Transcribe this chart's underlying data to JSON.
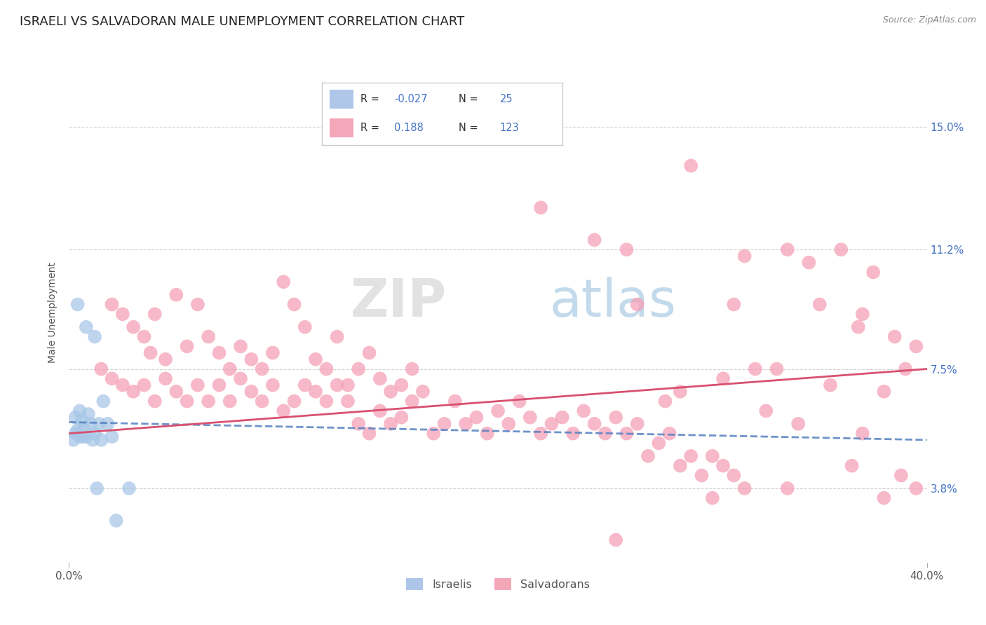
{
  "title": "ISRAELI VS SALVADORAN MALE UNEMPLOYMENT CORRELATION CHART",
  "source": "Source: ZipAtlas.com",
  "ylabel": "Male Unemployment",
  "ytick_labels": [
    "3.8%",
    "7.5%",
    "11.2%",
    "15.0%"
  ],
  "ytick_values": [
    3.8,
    7.5,
    11.2,
    15.0
  ],
  "xlim": [
    0.0,
    40.0
  ],
  "ylim": [
    1.5,
    17.0
  ],
  "watermark": "ZIPatlas",
  "israeli_color": "#a8c8e8",
  "salvadoran_color": "#f5a0b8",
  "trend_israeli_color": "#5580c0",
  "trend_salvadoran_color": "#d85070",
  "israeli_points": [
    [
      0.4,
      9.5
    ],
    [
      0.8,
      8.8
    ],
    [
      1.2,
      8.5
    ],
    [
      1.6,
      6.5
    ],
    [
      0.3,
      6.0
    ],
    [
      0.5,
      6.2
    ],
    [
      0.9,
      6.1
    ],
    [
      0.6,
      5.9
    ],
    [
      1.0,
      5.8
    ],
    [
      1.4,
      5.8
    ],
    [
      0.7,
      5.7
    ],
    [
      1.8,
      5.8
    ],
    [
      0.4,
      5.6
    ],
    [
      1.2,
      5.5
    ],
    [
      0.8,
      5.4
    ],
    [
      0.3,
      5.5
    ],
    [
      0.6,
      5.4
    ],
    [
      1.1,
      5.3
    ],
    [
      0.5,
      5.4
    ],
    [
      1.5,
      5.3
    ],
    [
      2.0,
      5.4
    ],
    [
      0.2,
      5.3
    ],
    [
      1.3,
      3.8
    ],
    [
      2.8,
      3.8
    ],
    [
      2.2,
      2.8
    ]
  ],
  "salvadoran_points": [
    [
      2.0,
      9.5
    ],
    [
      2.5,
      9.2
    ],
    [
      3.0,
      8.8
    ],
    [
      3.5,
      8.5
    ],
    [
      4.0,
      9.2
    ],
    [
      5.0,
      9.8
    ],
    [
      3.8,
      8.0
    ],
    [
      4.5,
      7.8
    ],
    [
      5.5,
      8.2
    ],
    [
      6.0,
      9.5
    ],
    [
      6.5,
      8.5
    ],
    [
      7.0,
      8.0
    ],
    [
      7.5,
      7.5
    ],
    [
      8.0,
      8.2
    ],
    [
      8.5,
      7.8
    ],
    [
      9.0,
      7.5
    ],
    [
      9.5,
      8.0
    ],
    [
      10.0,
      10.2
    ],
    [
      10.5,
      9.5
    ],
    [
      11.0,
      8.8
    ],
    [
      11.5,
      7.8
    ],
    [
      12.0,
      7.5
    ],
    [
      12.5,
      8.5
    ],
    [
      13.0,
      7.0
    ],
    [
      13.5,
      7.5
    ],
    [
      14.0,
      8.0
    ],
    [
      14.5,
      7.2
    ],
    [
      15.0,
      6.8
    ],
    [
      15.5,
      7.0
    ],
    [
      16.0,
      7.5
    ],
    [
      1.5,
      7.5
    ],
    [
      2.0,
      7.2
    ],
    [
      2.5,
      7.0
    ],
    [
      3.0,
      6.8
    ],
    [
      3.5,
      7.0
    ],
    [
      4.0,
      6.5
    ],
    [
      4.5,
      7.2
    ],
    [
      5.0,
      6.8
    ],
    [
      5.5,
      6.5
    ],
    [
      6.0,
      7.0
    ],
    [
      6.5,
      6.5
    ],
    [
      7.0,
      7.0
    ],
    [
      7.5,
      6.5
    ],
    [
      8.0,
      7.2
    ],
    [
      8.5,
      6.8
    ],
    [
      9.0,
      6.5
    ],
    [
      9.5,
      7.0
    ],
    [
      10.0,
      6.2
    ],
    [
      10.5,
      6.5
    ],
    [
      11.0,
      7.0
    ],
    [
      11.5,
      6.8
    ],
    [
      12.0,
      6.5
    ],
    [
      12.5,
      7.0
    ],
    [
      13.0,
      6.5
    ],
    [
      13.5,
      5.8
    ],
    [
      14.0,
      5.5
    ],
    [
      14.5,
      6.2
    ],
    [
      15.0,
      5.8
    ],
    [
      15.5,
      6.0
    ],
    [
      16.0,
      6.5
    ],
    [
      16.5,
      6.8
    ],
    [
      17.0,
      5.5
    ],
    [
      17.5,
      5.8
    ],
    [
      18.0,
      6.5
    ],
    [
      18.5,
      5.8
    ],
    [
      19.0,
      6.0
    ],
    [
      19.5,
      5.5
    ],
    [
      20.0,
      6.2
    ],
    [
      20.5,
      5.8
    ],
    [
      21.0,
      6.5
    ],
    [
      21.5,
      6.0
    ],
    [
      22.0,
      5.5
    ],
    [
      22.5,
      5.8
    ],
    [
      23.0,
      6.0
    ],
    [
      23.5,
      5.5
    ],
    [
      24.0,
      6.2
    ],
    [
      24.5,
      5.8
    ],
    [
      25.0,
      5.5
    ],
    [
      25.5,
      6.0
    ],
    [
      26.0,
      5.5
    ],
    [
      26.5,
      5.8
    ],
    [
      27.0,
      4.8
    ],
    [
      27.5,
      5.2
    ],
    [
      28.0,
      5.5
    ],
    [
      28.5,
      4.5
    ],
    [
      29.0,
      4.8
    ],
    [
      29.5,
      4.2
    ],
    [
      30.0,
      4.8
    ],
    [
      30.5,
      4.5
    ],
    [
      31.0,
      4.2
    ],
    [
      31.5,
      3.8
    ],
    [
      22.0,
      12.5
    ],
    [
      24.5,
      11.5
    ],
    [
      26.0,
      11.2
    ],
    [
      31.5,
      11.0
    ],
    [
      33.5,
      11.2
    ],
    [
      36.0,
      11.2
    ],
    [
      34.5,
      10.8
    ],
    [
      37.5,
      10.5
    ],
    [
      29.0,
      13.8
    ],
    [
      26.5,
      9.5
    ],
    [
      31.0,
      9.5
    ],
    [
      35.0,
      9.5
    ],
    [
      37.0,
      9.2
    ],
    [
      36.8,
      8.8
    ],
    [
      38.5,
      8.5
    ],
    [
      39.5,
      8.2
    ],
    [
      39.0,
      7.5
    ],
    [
      33.0,
      7.5
    ],
    [
      32.0,
      7.5
    ],
    [
      30.5,
      7.2
    ],
    [
      35.5,
      7.0
    ],
    [
      38.0,
      6.8
    ],
    [
      28.5,
      6.8
    ],
    [
      27.8,
      6.5
    ],
    [
      32.5,
      6.2
    ],
    [
      34.0,
      5.8
    ],
    [
      37.0,
      5.5
    ],
    [
      36.5,
      4.5
    ],
    [
      38.8,
      4.2
    ],
    [
      39.5,
      3.8
    ],
    [
      30.0,
      3.5
    ],
    [
      33.5,
      3.8
    ],
    [
      38.0,
      3.5
    ],
    [
      25.5,
      2.2
    ]
  ],
  "background_color": "#ffffff",
  "grid_color": "#cccccc",
  "title_fontsize": 13,
  "axis_label_fontsize": 10,
  "tick_fontsize": 11
}
